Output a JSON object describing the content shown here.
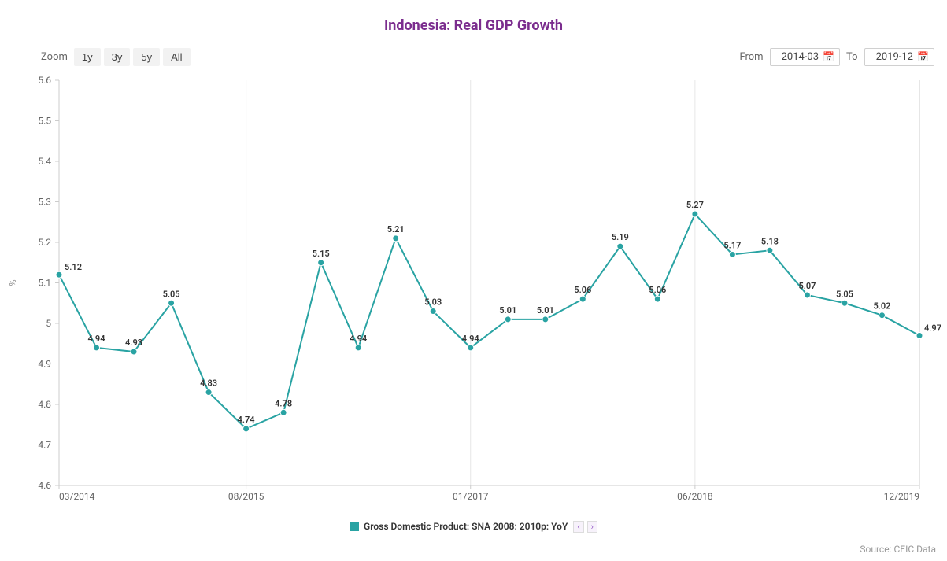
{
  "title": {
    "text": "Indonesia: Real GDP Growth",
    "color": "#7b2d8e",
    "fontsize": 18
  },
  "zoom": {
    "label": "Zoom",
    "options": [
      "1y",
      "3y",
      "5y",
      "All"
    ]
  },
  "range": {
    "from_label": "From",
    "from_value": "2014-03",
    "to_label": "To",
    "to_value": "2019-12"
  },
  "chart": {
    "type": "line",
    "background_color": "#ffffff",
    "grid_color": "#e6e6e6",
    "axis_line_color": "#cccccc",
    "series_color": "#29a3a3",
    "marker_color": "#29a3a3",
    "marker_radius": 4,
    "line_width": 2,
    "yaxis": {
      "title": "%",
      "min": 4.6,
      "max": 5.6,
      "tick_step": 0.1
    },
    "x_ticks": [
      {
        "i": 0,
        "label": "03/2014"
      },
      {
        "i": 5,
        "label": "08/2015"
      },
      {
        "i": 11,
        "label": "01/2017"
      },
      {
        "i": 17,
        "label": "06/2018"
      },
      {
        "i": 23,
        "label": "12/2019"
      }
    ],
    "x_grid_at": [
      5,
      11,
      17
    ],
    "data": [
      {
        "label": "5.12",
        "v": 5.12
      },
      {
        "label": "4.94",
        "v": 4.94
      },
      {
        "label": "4.93",
        "v": 4.93
      },
      {
        "label": "5.05",
        "v": 5.05
      },
      {
        "label": "4.83",
        "v": 4.83
      },
      {
        "label": "4.74",
        "v": 4.74
      },
      {
        "label": "4.78",
        "v": 4.78
      },
      {
        "label": "5.15",
        "v": 5.15
      },
      {
        "label": "4.94",
        "v": 4.94
      },
      {
        "label": "5.21",
        "v": 5.21
      },
      {
        "label": "5.03",
        "v": 5.03
      },
      {
        "label": "4.94",
        "v": 4.94
      },
      {
        "label": "5.01",
        "v": 5.01
      },
      {
        "label": "5.01",
        "v": 5.01
      },
      {
        "label": "5.06",
        "v": 5.06
      },
      {
        "label": "5.19",
        "v": 5.19
      },
      {
        "label": "5.06",
        "v": 5.06
      },
      {
        "label": "5.27",
        "v": 5.27
      },
      {
        "label": "5.17",
        "v": 5.17
      },
      {
        "label": "5.18",
        "v": 5.18
      },
      {
        "label": "5.07",
        "v": 5.07
      },
      {
        "label": "5.05",
        "v": 5.05
      },
      {
        "label": "5.02",
        "v": 5.02
      },
      {
        "label": "4.97",
        "v": 4.97
      }
    ]
  },
  "legend": {
    "text": "Gross Domestic Product: SNA 2008: 2010p: YoY",
    "swatch_color": "#29a3a3"
  },
  "source": "Source: CEIC Data"
}
